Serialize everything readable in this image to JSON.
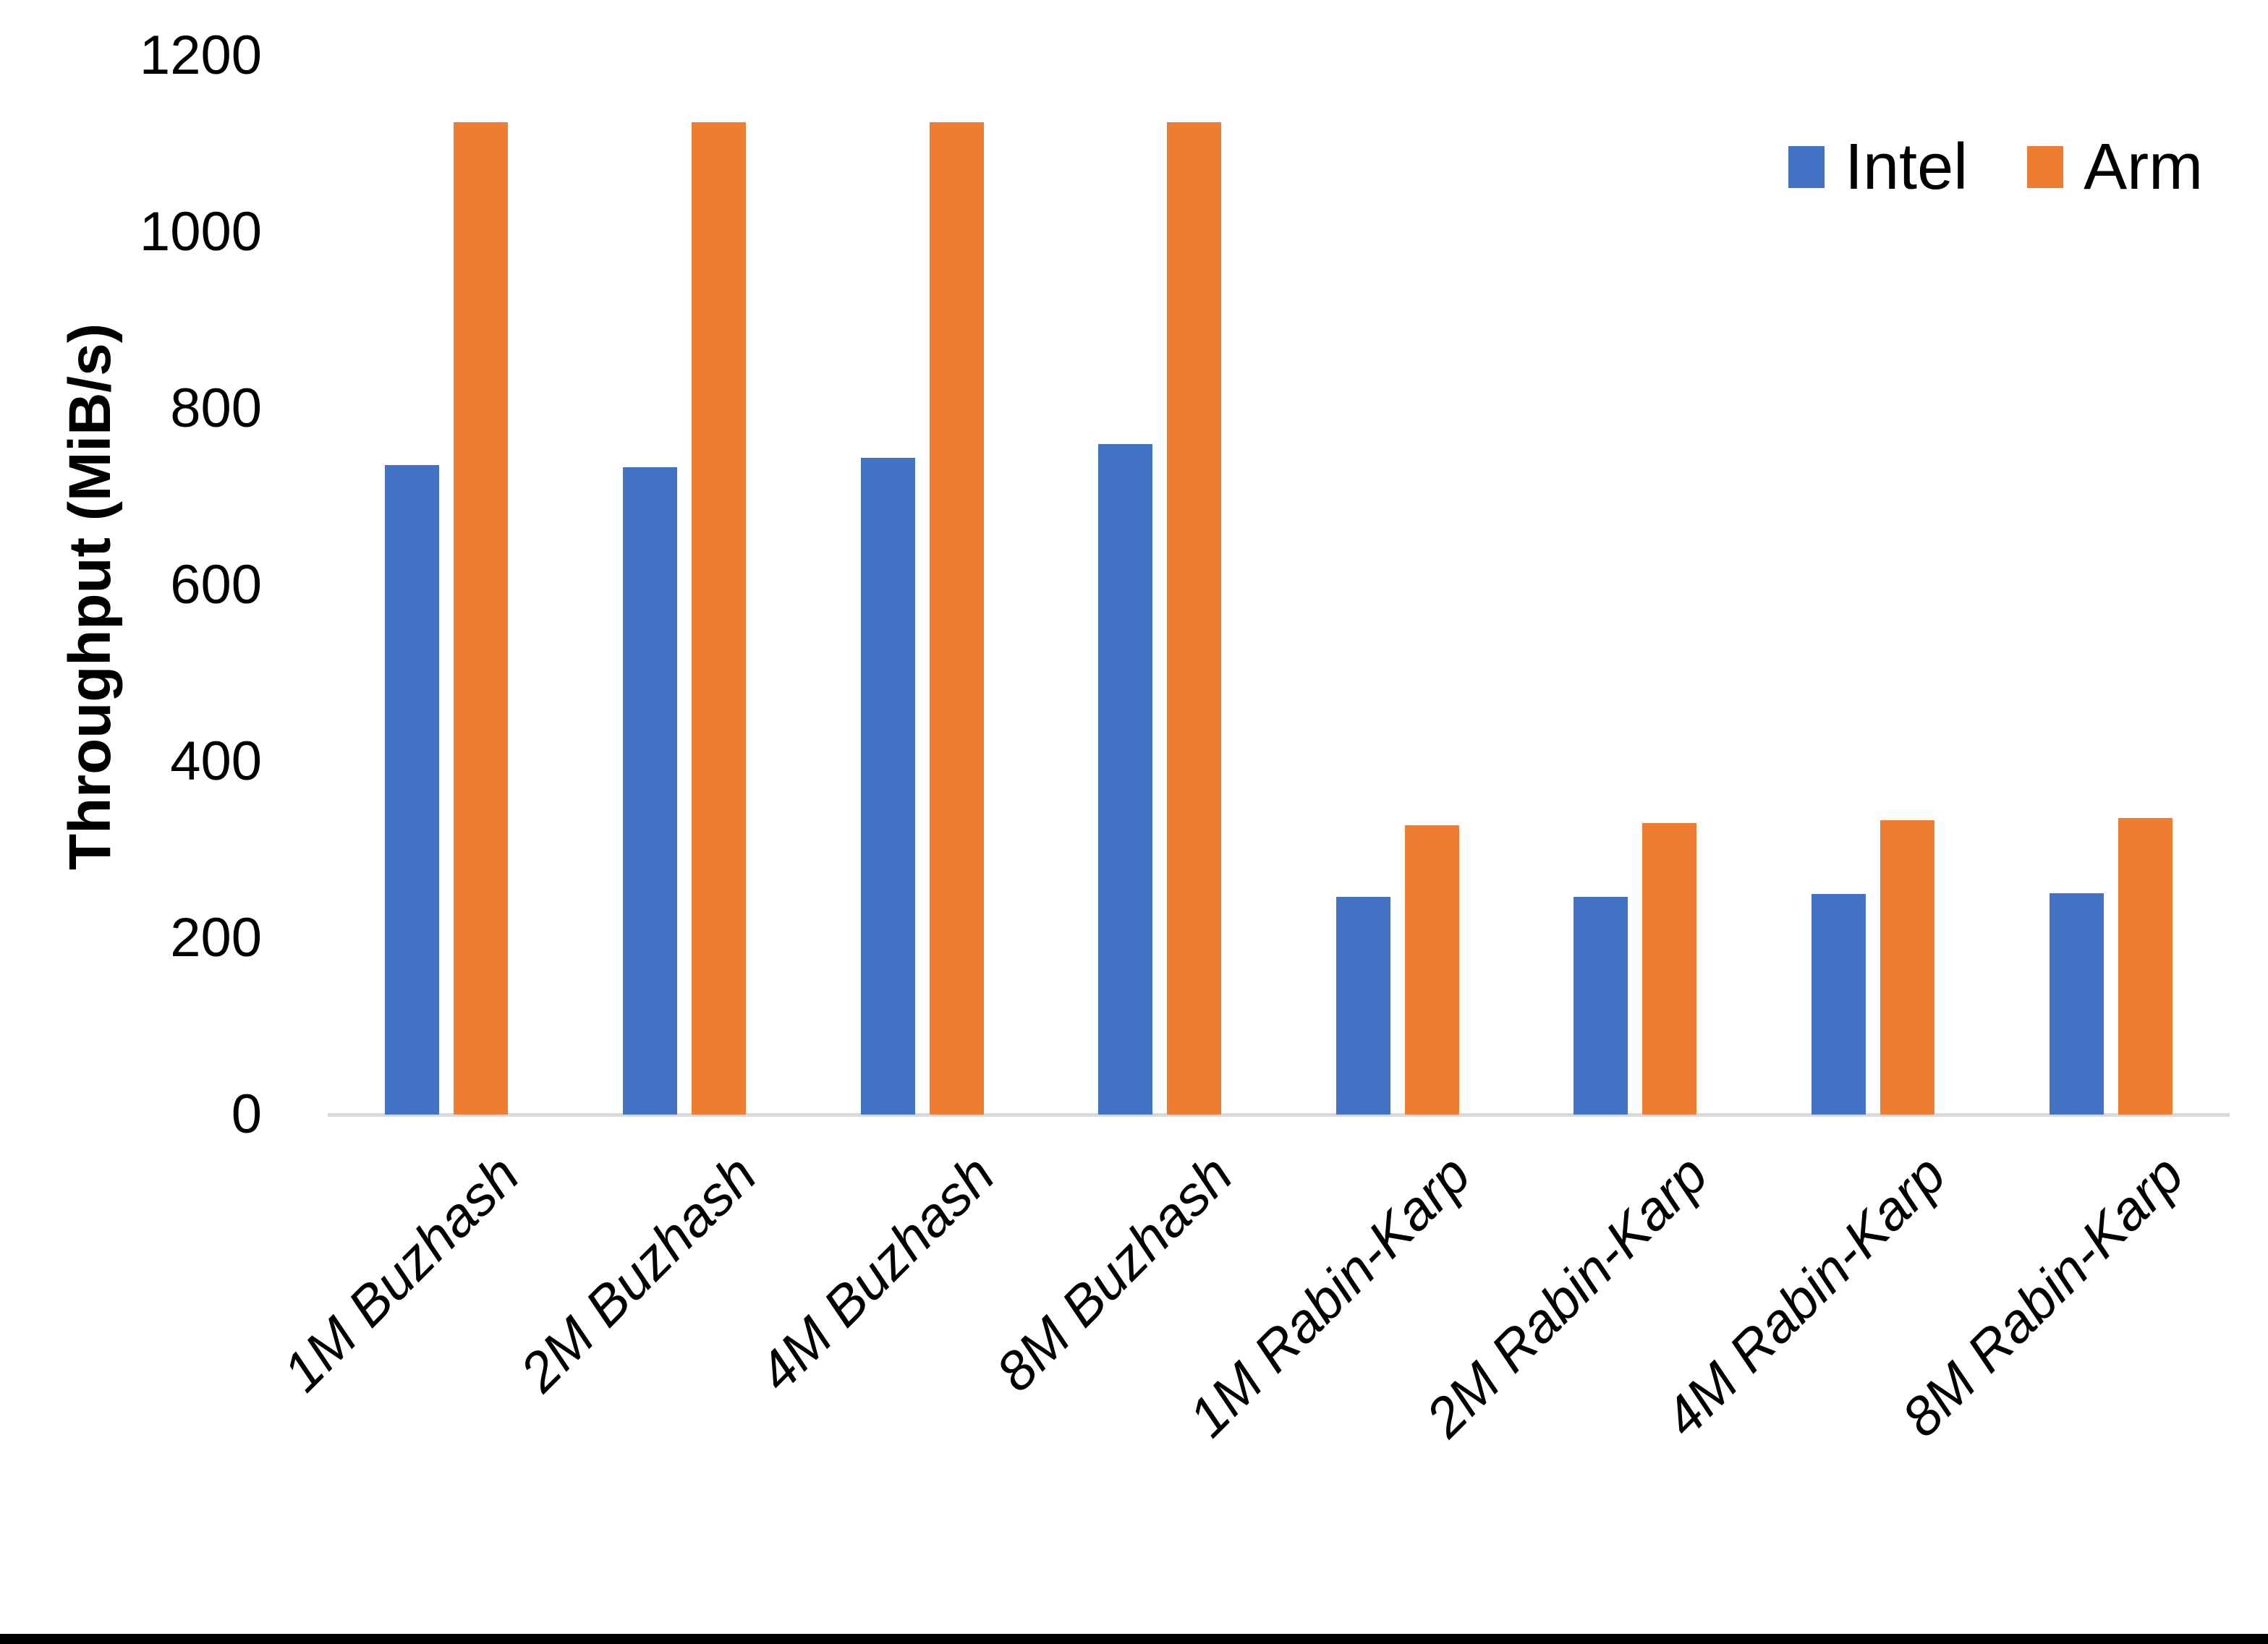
{
  "chart_data": {
    "type": "bar",
    "title": "",
    "xlabel": "",
    "ylabel": "Throughput (MiB/s)",
    "categories": [
      "1M Buzhash",
      "2M Buzhash",
      "4M Buzhash",
      "8M Buzhash",
      "1M Rabin-Karp",
      "2M Rabin-Karp",
      "4M Rabin-Karp",
      "8M Rabin-Karp"
    ],
    "series": [
      {
        "name": "Intel",
        "color": "#4472C4",
        "values": [
          736,
          734,
          744,
          760,
          247,
          247,
          250,
          251
        ]
      },
      {
        "name": "Arm",
        "color": "#ED7D31",
        "values": [
          1125,
          1125,
          1125,
          1125,
          328,
          330,
          334,
          336
        ]
      }
    ],
    "ylim": [
      0,
      1200
    ],
    "yticks": [
      0,
      200,
      400,
      600,
      800,
      1000,
      1200
    ],
    "grid": false,
    "legend_position": "top-right",
    "axis_line_color": "#D9D9D9",
    "text_color": "#000000",
    "background_color": "#FFFFFF"
  }
}
